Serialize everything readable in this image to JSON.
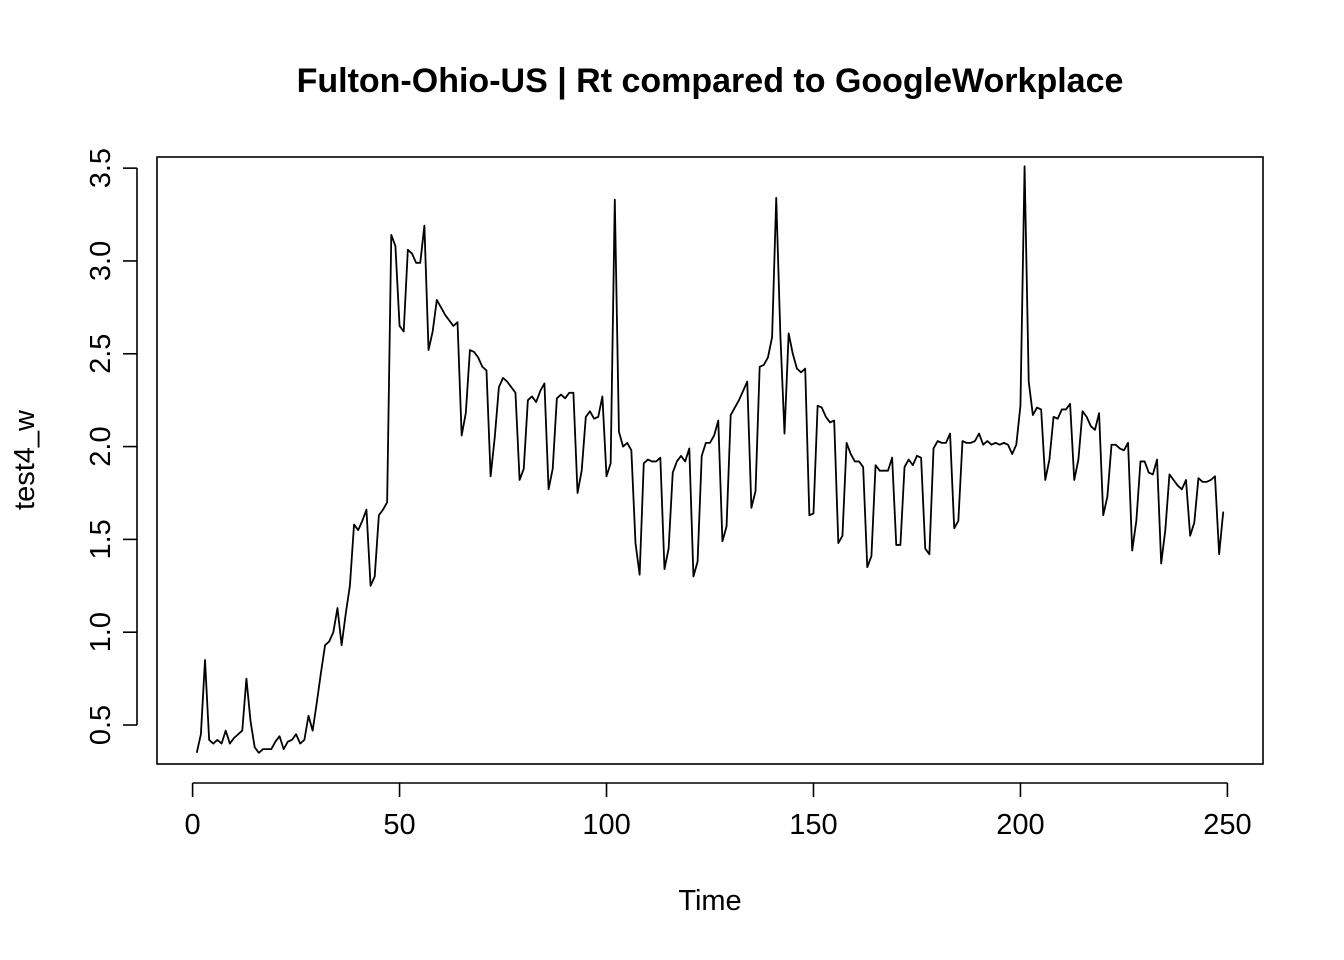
{
  "chart_data": {
    "type": "line",
    "title": "Fulton-Ohio-US | Rt compared to GoogleWorkplace",
    "xlabel": "Time",
    "ylabel": "test4_w",
    "xlim": [
      -8.6,
      258.6
    ],
    "ylim": [
      0.29,
      3.56
    ],
    "xticks": [
      0,
      50,
      100,
      150,
      200,
      250
    ],
    "yticks": [
      0.5,
      1.0,
      1.5,
      2.0,
      2.5,
      3.0,
      3.5
    ],
    "xtick_labels": [
      "0",
      "50",
      "100",
      "150",
      "200",
      "250"
    ],
    "ytick_labels": [
      "0.5",
      "1.0",
      "1.5",
      "2.0",
      "2.5",
      "3.0",
      "3.5"
    ],
    "grid": false,
    "series": [
      {
        "color": "#000000",
        "x_start": 1,
        "x_step": 1,
        "values": [
          0.35,
          0.45,
          0.85,
          0.42,
          0.4,
          0.42,
          0.4,
          0.47,
          0.4,
          0.43,
          0.45,
          0.47,
          0.75,
          0.52,
          0.38,
          0.35,
          0.37,
          0.37,
          0.37,
          0.41,
          0.44,
          0.37,
          0.41,
          0.42,
          0.45,
          0.4,
          0.42,
          0.55,
          0.47,
          0.62,
          0.78,
          0.93,
          0.95,
          1.0,
          1.13,
          0.93,
          1.1,
          1.25,
          1.58,
          1.55,
          1.6,
          1.66,
          1.25,
          1.3,
          1.63,
          1.66,
          1.7,
          3.14,
          3.08,
          2.65,
          2.62,
          3.06,
          3.04,
          2.99,
          2.99,
          3.19,
          2.52,
          2.62,
          2.79,
          2.75,
          2.71,
          2.68,
          2.65,
          2.67,
          2.06,
          2.18,
          2.52,
          2.51,
          2.48,
          2.43,
          2.41,
          1.84,
          2.05,
          2.32,
          2.37,
          2.35,
          2.32,
          2.29,
          1.82,
          1.88,
          2.25,
          2.27,
          2.24,
          2.3,
          2.34,
          1.77,
          1.88,
          2.26,
          2.28,
          2.26,
          2.29,
          2.29,
          1.75,
          1.87,
          2.16,
          2.19,
          2.15,
          2.16,
          2.27,
          1.84,
          1.91,
          3.33,
          2.08,
          2.0,
          2.02,
          1.98,
          1.48,
          1.31,
          1.91,
          1.93,
          1.92,
          1.92,
          1.94,
          1.34,
          1.45,
          1.86,
          1.92,
          1.95,
          1.92,
          1.99,
          1.3,
          1.38,
          1.95,
          2.02,
          2.02,
          2.06,
          2.14,
          1.49,
          1.57,
          2.17,
          2.21,
          2.25,
          2.3,
          2.35,
          1.67,
          1.76,
          2.43,
          2.44,
          2.48,
          2.59,
          3.34,
          2.6,
          2.07,
          2.61,
          2.5,
          2.42,
          2.4,
          2.42,
          1.63,
          1.64,
          2.22,
          2.21,
          2.16,
          2.13,
          2.14,
          1.48,
          1.52,
          2.02,
          1.96,
          1.92,
          1.92,
          1.89,
          1.35,
          1.41,
          1.9,
          1.87,
          1.87,
          1.87,
          1.94,
          1.47,
          1.47,
          1.89,
          1.93,
          1.9,
          1.95,
          1.94,
          1.45,
          1.42,
          1.99,
          2.03,
          2.02,
          2.02,
          2.07,
          1.56,
          1.6,
          2.03,
          2.02,
          2.02,
          2.03,
          2.07,
          2.01,
          2.03,
          2.01,
          2.02,
          2.01,
          2.02,
          2.01,
          1.96,
          2.01,
          2.22,
          3.51,
          2.35,
          2.17,
          2.21,
          2.2,
          1.82,
          1.93,
          2.16,
          2.15,
          2.2,
          2.2,
          2.23,
          1.82,
          1.93,
          2.19,
          2.16,
          2.11,
          2.09,
          2.18,
          1.63,
          1.73,
          2.01,
          2.01,
          1.99,
          1.98,
          2.02,
          1.44,
          1.6,
          1.92,
          1.92,
          1.86,
          1.85,
          1.93,
          1.37,
          1.55,
          1.85,
          1.82,
          1.79,
          1.77,
          1.82,
          1.52,
          1.59,
          1.83,
          1.81,
          1.81,
          1.82,
          1.84,
          1.42,
          1.65
        ]
      }
    ]
  }
}
